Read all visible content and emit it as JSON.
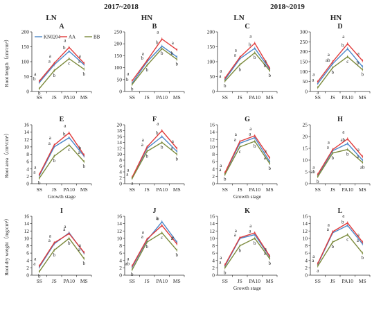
{
  "headers": {
    "years": [
      "2017~2018",
      "2018~2019"
    ],
    "treatments": [
      "LN",
      "HN",
      "LN",
      "HN"
    ]
  },
  "legend": [
    "KN0204",
    "AA",
    "BB"
  ],
  "colors": {
    "KN0204": "#4a86c8",
    "AA": "#e03a3a",
    "BB": "#7b8a3c"
  },
  "chart_data": [
    {
      "type": "line",
      "panel": "A",
      "categories": [
        "SS",
        "JS",
        "PA10",
        "MS"
      ],
      "ylabel": "Root length（cm/cm³）",
      "xlabel": "",
      "ylim": [
        0,
        200
      ],
      "yticks": [
        0,
        50,
        100,
        150,
        200
      ],
      "series": [
        {
          "name": "KN0204",
          "values": [
            30,
            90,
            135,
            90
          ]
        },
        {
          "name": "AA",
          "values": [
            35,
            95,
            148,
            95
          ]
        },
        {
          "name": "BB",
          "values": [
            10,
            70,
            110,
            75
          ]
        }
      ],
      "letters": [
        [
          "b",
          "a",
          "b",
          "a"
        ],
        [
          "a",
          "a",
          "a",
          "a"
        ],
        [
          "b",
          "b",
          "c",
          "b"
        ]
      ]
    },
    {
      "type": "line",
      "panel": "B",
      "categories": [
        "SS",
        "JS",
        "PA10",
        "MS"
      ],
      "ylabel": "",
      "xlabel": "",
      "ylim": [
        0,
        250
      ],
      "yticks": [
        0,
        50,
        100,
        150,
        200,
        250
      ],
      "series": [
        {
          "name": "KN0204",
          "values": [
            35,
            125,
            190,
            145
          ]
        },
        {
          "name": "AA",
          "values": [
            45,
            130,
            220,
            175
          ]
        },
        {
          "name": "BB",
          "values": [
            30,
            110,
            180,
            135
          ]
        }
      ],
      "letters": [
        [
          "b",
          "b",
          "b",
          "b"
        ],
        [
          "a",
          "a",
          "a",
          "a"
        ],
        [
          "b",
          "b",
          "b",
          "b"
        ]
      ]
    },
    {
      "type": "line",
      "panel": "C",
      "categories": [
        "SS",
        "JS",
        "PA10",
        "MS"
      ],
      "ylabel": "",
      "xlabel": "",
      "ylim": [
        0,
        200
      ],
      "yticks": [
        0,
        50,
        100,
        150,
        200
      ],
      "series": [
        {
          "name": "KN0204",
          "values": [
            40,
            110,
            145,
            75
          ]
        },
        {
          "name": "AA",
          "values": [
            45,
            115,
            162,
            78
          ]
        },
        {
          "name": "BB",
          "values": [
            35,
            90,
            130,
            70
          ]
        }
      ],
      "letters": [
        [
          "a",
          "a",
          "b",
          "b"
        ],
        [
          "a",
          "a",
          "a",
          "a"
        ],
        [
          "b",
          "b",
          "b",
          "b"
        ]
      ]
    },
    {
      "type": "line",
      "panel": "D",
      "categories": [
        "SS",
        "JS",
        "PA10",
        "MS"
      ],
      "ylabel": "",
      "xlabel": "",
      "ylim": [
        0,
        300
      ],
      "yticks": [
        0,
        50,
        100,
        150,
        200,
        250,
        300
      ],
      "series": [
        {
          "name": "KN0204",
          "values": [
            40,
            140,
            215,
            125
          ]
        },
        {
          "name": "AA",
          "values": [
            50,
            150,
            240,
            155
          ]
        },
        {
          "name": "BB",
          "values": [
            20,
            120,
            175,
            110
          ]
        }
      ],
      "letters": [
        [
          "a",
          "ab",
          "b",
          "b"
        ],
        [
          "a",
          "a",
          "a",
          "a"
        ],
        [
          "a",
          "b",
          "c",
          "b"
        ]
      ]
    },
    {
      "type": "line",
      "panel": "E",
      "categories": [
        "SS",
        "JS",
        "PA10",
        "MS"
      ],
      "ylabel": "Root area（cm²/cm³）",
      "xlabel": "Growth stage",
      "ylim": [
        0,
        16
      ],
      "yticks": [
        0,
        2,
        4,
        6,
        8,
        10,
        12,
        14,
        16
      ],
      "series": [
        {
          "name": "KN0204",
          "values": [
            2.2,
            10,
            12.5,
            7.5
          ]
        },
        {
          "name": "AA",
          "values": [
            2.5,
            10.5,
            13.8,
            7.8
          ]
        },
        {
          "name": "BB",
          "values": [
            1.5,
            7.5,
            10.5,
            6.0
          ]
        }
      ],
      "letters": [
        [
          "a",
          "a",
          "b",
          "a"
        ],
        [
          "a",
          "a",
          "a",
          "b"
        ],
        [
          "b",
          "b",
          "c",
          "b"
        ]
      ]
    },
    {
      "type": "line",
      "panel": "F",
      "categories": [
        "SS",
        "JS",
        "PA10",
        "MS"
      ],
      "ylabel": "",
      "xlabel": "",
      "ylim": [
        0,
        20
      ],
      "yticks": [
        0,
        2,
        4,
        6,
        8,
        10,
        12,
        14,
        16,
        18,
        20
      ],
      "series": [
        {
          "name": "KN0204",
          "values": [
            2.0,
            12,
            16,
            11
          ]
        },
        {
          "name": "AA",
          "values": [
            2.2,
            12.5,
            18,
            12
          ]
        },
        {
          "name": "BB",
          "values": [
            1.8,
            11,
            14,
            10
          ]
        }
      ],
      "letters": [
        [
          "a",
          "a",
          "b",
          "a"
        ],
        [
          "a",
          "a",
          "a",
          "a"
        ],
        [
          "a",
          "b",
          "b",
          "b"
        ]
      ]
    },
    {
      "type": "line",
      "panel": "G",
      "categories": [
        "SS",
        "JS",
        "PA10",
        "MS"
      ],
      "ylabel": "",
      "xlabel": "Growth stage",
      "ylim": [
        0,
        16
      ],
      "yticks": [
        0,
        2,
        4,
        6,
        8,
        10,
        12,
        14,
        16
      ],
      "series": [
        {
          "name": "KN0204",
          "values": [
            2.8,
            11,
            12.5,
            6.0
          ]
        },
        {
          "name": "AA",
          "values": [
            3.0,
            11.5,
            13,
            7.0
          ]
        },
        {
          "name": "BB",
          "values": [
            2.5,
            10,
            11.5,
            5.5
          ]
        }
      ],
      "letters": [
        [
          "a",
          "a",
          "a",
          "a"
        ],
        [
          "a",
          "a",
          "a",
          "a"
        ],
        [
          "b",
          "c",
          "b",
          "b"
        ]
      ]
    },
    {
      "type": "line",
      "panel": "H",
      "categories": [
        "SS",
        "JS",
        "PA10",
        "MS"
      ],
      "ylabel": "",
      "xlabel": "",
      "ylim": [
        0,
        25
      ],
      "yticks": [
        0,
        5,
        10,
        15,
        20,
        25
      ],
      "series": [
        {
          "name": "KN0204",
          "values": [
            3.5,
            14,
            17,
            10
          ]
        },
        {
          "name": "AA",
          "values": [
            4.0,
            14.5,
            19,
            11.5
          ]
        },
        {
          "name": "BB",
          "values": [
            3.0,
            13,
            14.5,
            9
          ]
        }
      ],
      "letters": [
        [
          "ab",
          "a",
          "ab",
          "a"
        ],
        [
          "a",
          "a",
          "a",
          "a"
        ],
        [
          "b",
          "b",
          "b",
          "ab"
        ]
      ]
    },
    {
      "type": "line",
      "panel": "I",
      "categories": [
        "SS",
        "JS",
        "PA10",
        "MS"
      ],
      "ylabel": "Root dry weight（mg/cm³）",
      "xlabel": "",
      "ylim": [
        0,
        16
      ],
      "yticks": [
        0,
        2,
        4,
        6,
        8,
        10,
        12,
        14,
        16
      ],
      "series": [
        {
          "name": "KN0204",
          "values": [
            2.2,
            8.5,
            11.5,
            6.0
          ]
        },
        {
          "name": "AA",
          "values": [
            2.5,
            8.8,
            11.3,
            6.2
          ]
        },
        {
          "name": "BB",
          "values": [
            1.0,
            6.8,
            10.0,
            4.5
          ]
        }
      ],
      "letters": [
        [
          "a",
          "a",
          "a",
          "a"
        ],
        [
          "a",
          "a",
          "a",
          "a"
        ],
        [
          "b",
          "b",
          "b",
          "b"
        ]
      ]
    },
    {
      "type": "line",
      "panel": "J",
      "categories": [
        "SS",
        "JS",
        "PA10",
        "MS"
      ],
      "ylabel": "",
      "xlabel": "",
      "ylim": [
        0,
        16
      ],
      "yticks": [
        0,
        2,
        4,
        6,
        8,
        10,
        12,
        14,
        16
      ],
      "series": [
        {
          "name": "KN0204",
          "values": [
            2.2,
            9.5,
            14.5,
            9.0
          ]
        },
        {
          "name": "AA",
          "values": [
            2.5,
            9.8,
            13.5,
            8.5
          ]
        },
        {
          "name": "BB",
          "values": [
            1.5,
            9.0,
            11.5,
            6.8
          ]
        }
      ],
      "letters": [
        [
          "ab",
          "a",
          "a",
          "a"
        ],
        [
          "a",
          "a",
          "b",
          "a"
        ],
        [
          "b",
          "b",
          "c",
          "b"
        ]
      ]
    },
    {
      "type": "line",
      "panel": "K",
      "categories": [
        "SS",
        "JS",
        "PA10",
        "MS"
      ],
      "ylabel": "",
      "xlabel": "Growth stage",
      "ylim": [
        0,
        16
      ],
      "yticks": [
        0,
        2,
        4,
        6,
        8,
        10,
        12,
        14,
        16
      ],
      "series": [
        {
          "name": "KN0204",
          "values": [
            2.5,
            10,
            11.0,
            5.0
          ]
        },
        {
          "name": "AA",
          "values": [
            2.8,
            10.2,
            11.5,
            5.2
          ]
        },
        {
          "name": "BB",
          "values": [
            2.0,
            8.0,
            10.0,
            4.5
          ]
        }
      ],
      "letters": [
        [
          "a",
          "a",
          "a",
          "a"
        ],
        [
          "a",
          "a",
          "a",
          "a"
        ],
        [
          "b",
          "b",
          "b",
          "b"
        ]
      ]
    },
    {
      "type": "line",
      "panel": "L",
      "categories": [
        "SS",
        "JS",
        "PA10",
        "MS"
      ],
      "ylabel": "",
      "xlabel": "",
      "ylim": [
        0,
        16
      ],
      "yticks": [
        0,
        2,
        4,
        6,
        8,
        10,
        12,
        14,
        16
      ],
      "series": [
        {
          "name": "KN0204",
          "values": [
            3.0,
            11.5,
            13.5,
            8.5
          ]
        },
        {
          "name": "AA",
          "values": [
            3.2,
            11.8,
            14.2,
            9.0
          ]
        },
        {
          "name": "BB",
          "values": [
            2.5,
            9.0,
            11.0,
            6.0
          ]
        }
      ],
      "letters": [
        [
          "a",
          "a",
          "b",
          "a"
        ],
        [
          "a",
          "a",
          "a",
          "a"
        ],
        [
          "a",
          "b",
          "c",
          "b"
        ]
      ]
    }
  ]
}
